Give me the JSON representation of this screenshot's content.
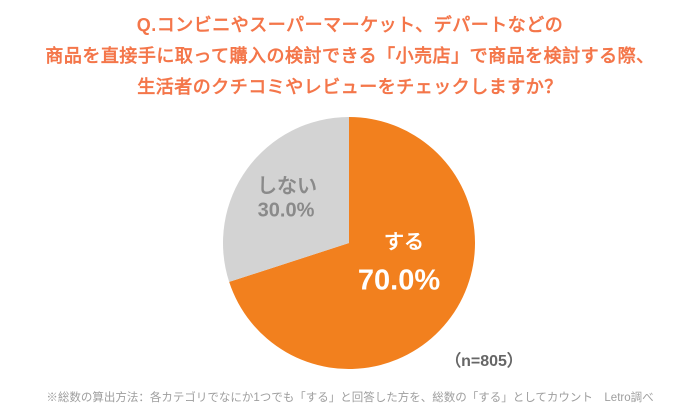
{
  "title": {
    "lines": [
      "Q.コンビニやスーパーマーケット、デパートなどの",
      "商品を直接手に取って購入の検討できる「小売店」で商品を検討する際、",
      "生活者のクチコミやレビューをチェックしますか？"
    ]
  },
  "chart_data": {
    "type": "pie",
    "title": "Q.コンビニやスーパーマーケット、デパートなどの商品を直接手に取って購入の検討できる「小売店」で商品を検討する際、生活者のクチコミやレビューをチェックしますか？",
    "start_angle": "top",
    "direction": "clockwise",
    "slices": [
      {
        "name": "suru",
        "label": "する",
        "value": 70.0,
        "display": "70.0%",
        "color": "#F2801E"
      },
      {
        "name": "shinai",
        "label": "しない",
        "value": 30.0,
        "display": "30.0%",
        "color": "#D3D3D3"
      }
    ],
    "sample_size_label": "（n=805）",
    "sample_size": 805,
    "legend_position": "inside"
  },
  "footnote": "※総数の算出方法：各カテゴリでなにか1つでも「する」と回答した方を、総数の「する」としてカウント　Letro調べ",
  "colors": {
    "title_text": "#F4764A",
    "slice_suru": "#F2801E",
    "slice_shinai": "#D3D3D3",
    "gray_label_text": "#8A8A8A",
    "sample_size_text": "#666666",
    "footnote_text": "#9E9E9E",
    "background": "#ffffff"
  }
}
